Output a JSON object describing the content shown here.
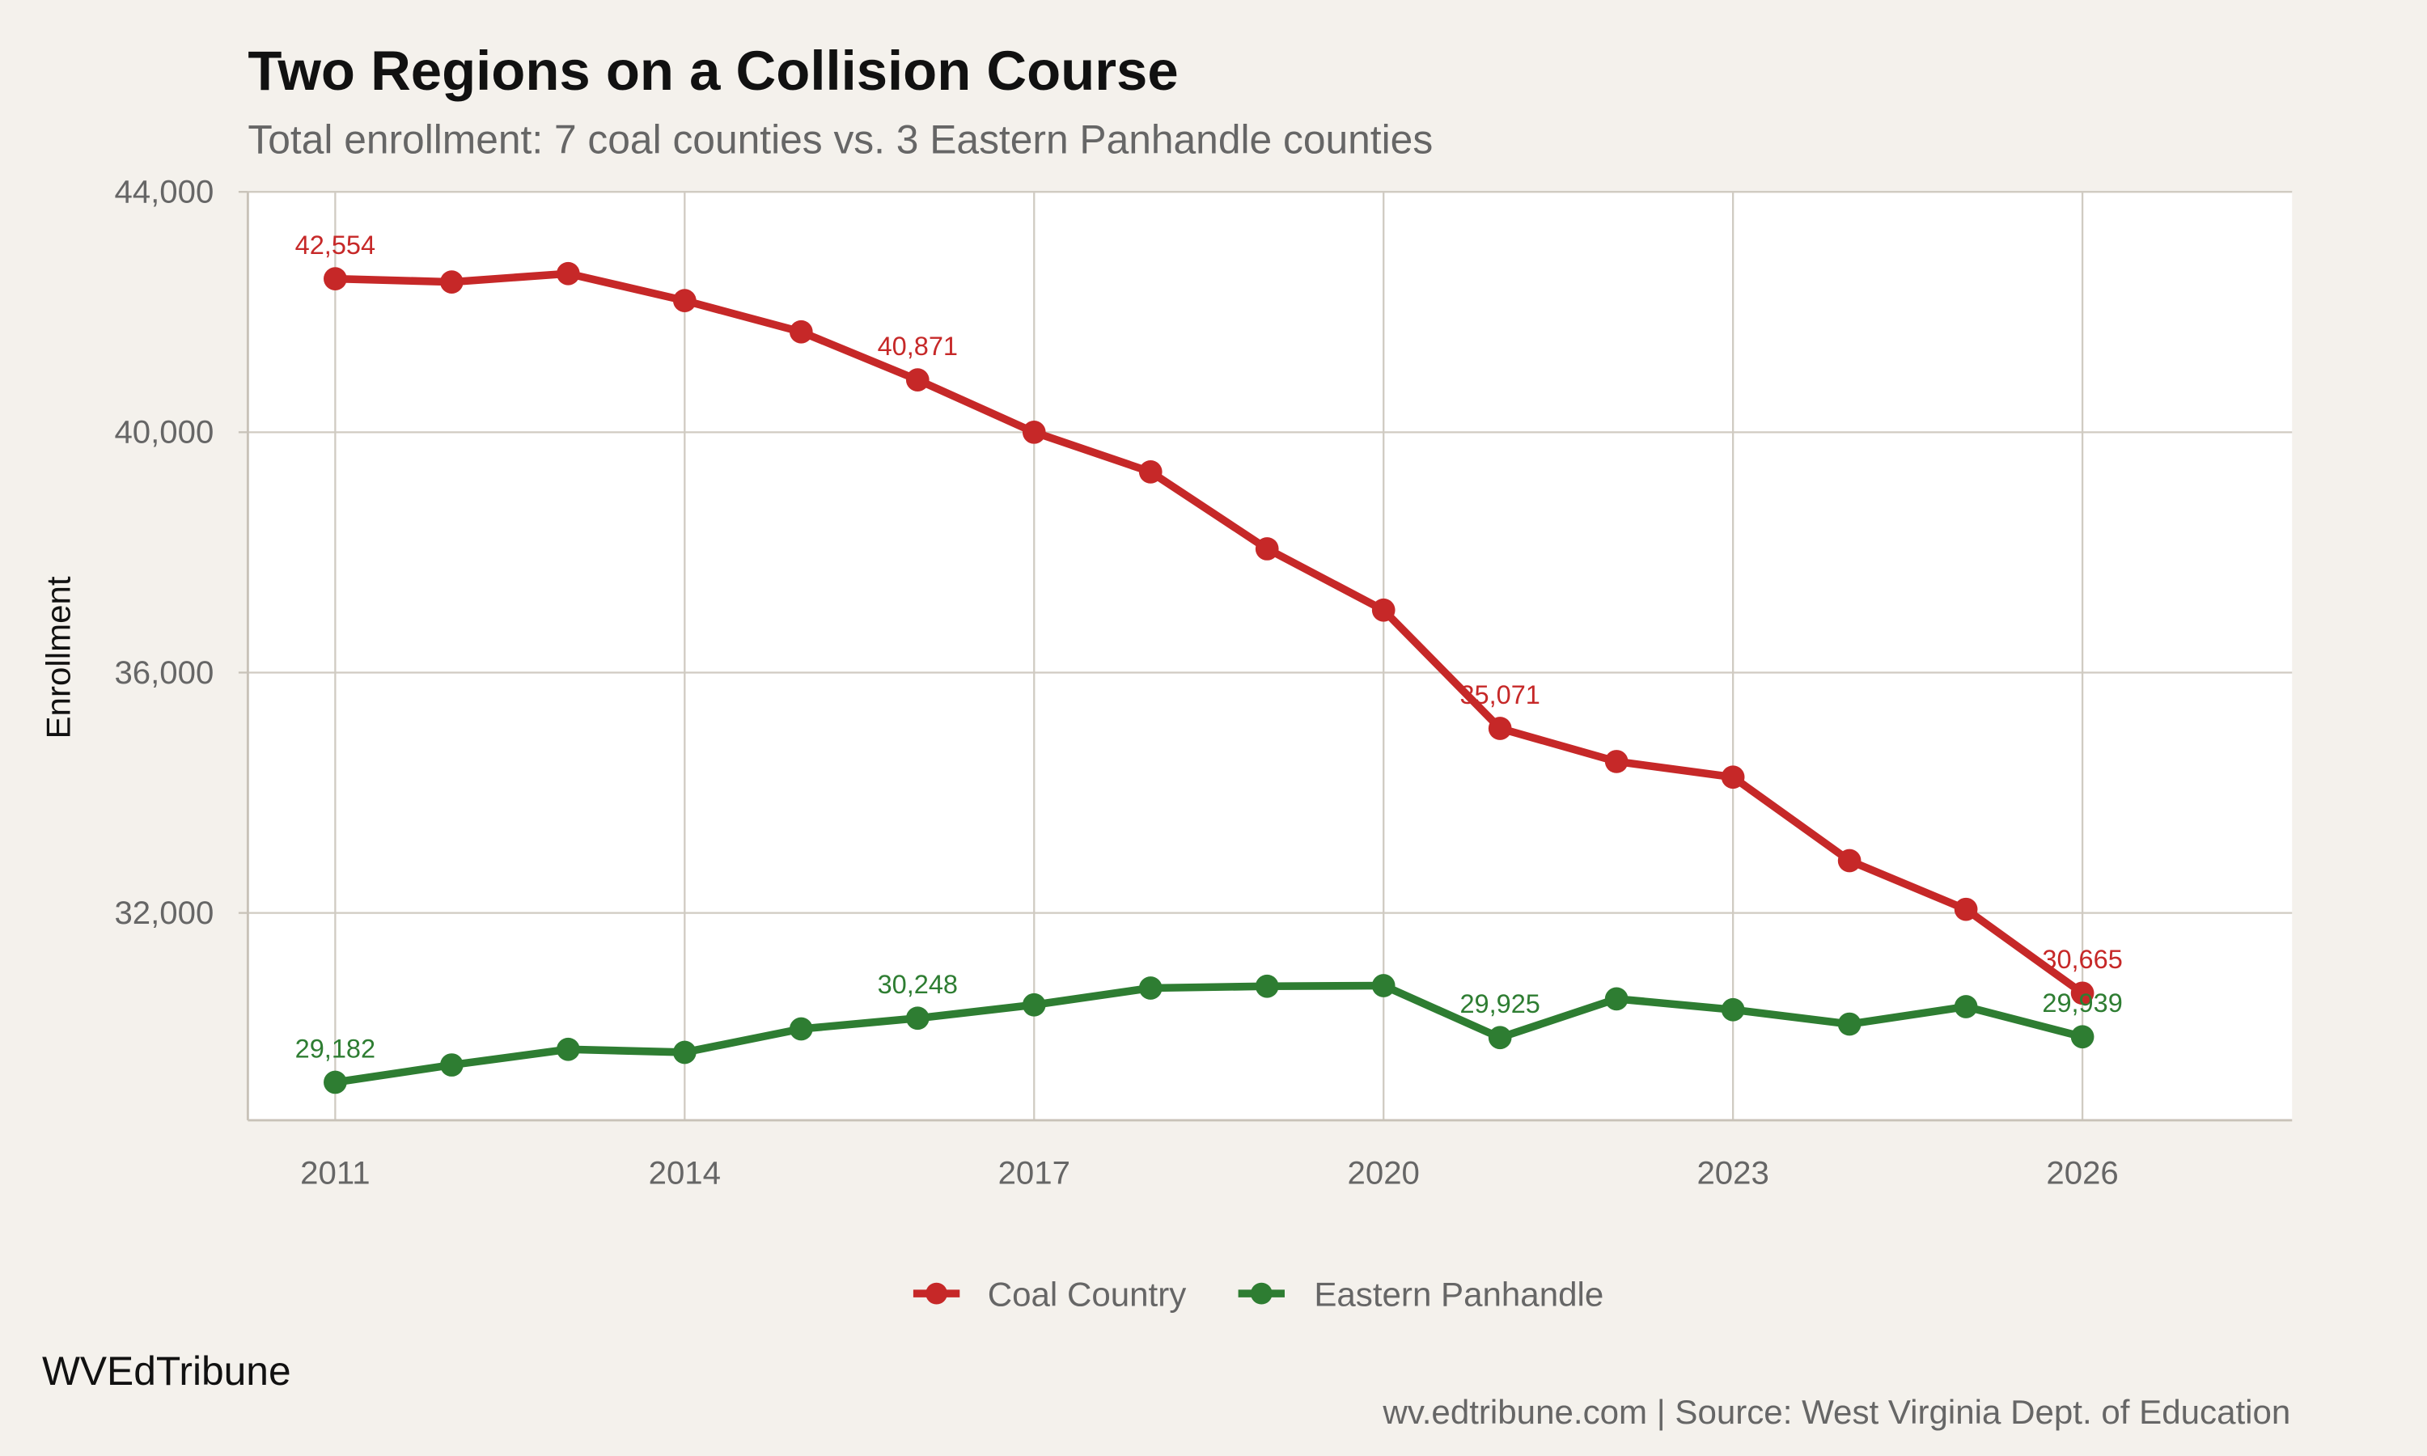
{
  "chart_data": {
    "type": "line",
    "title": "Two Regions on a Collision Course",
    "subtitle": "Total enrollment: 7 coal counties vs. 3 Eastern Panhandle counties",
    "xlabel": "",
    "ylabel": "Enrollment",
    "x": [
      2011,
      2012,
      2013,
      2014,
      2015,
      2016,
      2017,
      2018,
      2019,
      2020,
      2021,
      2022,
      2023,
      2024,
      2025,
      2026
    ],
    "xticks": [
      "2011",
      "2014",
      "2017",
      "2020",
      "2023",
      "2026"
    ],
    "yticks": [
      "32,000",
      "36,000",
      "40,000",
      "44,000"
    ],
    "ylim": [
      28550,
      44000
    ],
    "xlim": [
      2010.25,
      2027.8
    ],
    "grid": true,
    "legend": "bottom",
    "series": [
      {
        "name": "Coal Country",
        "color": "#c62828",
        "values": [
          42554,
          42500,
          42640,
          42190,
          41670,
          40871,
          40000,
          39340,
          38060,
          37040,
          35071,
          34520,
          34260,
          32870,
          32060,
          30665
        ],
        "labels": {
          "2011": "42,554",
          "2016": "40,871",
          "2021": "35,071",
          "2026": "30,665"
        }
      },
      {
        "name": "Eastern Panhandle",
        "color": "#2e7d32",
        "values": [
          29182,
          29470,
          29730,
          29680,
          30070,
          30248,
          30470,
          30750,
          30780,
          30790,
          29925,
          30570,
          30390,
          30150,
          30440,
          29939
        ],
        "labels": {
          "2011": "29,182",
          "2016": "30,248",
          "2021": "29,925",
          "2026": "29,939"
        }
      }
    ],
    "caption_left": "WVEdTribune",
    "caption_right": "wv.edtribune.com | Source: West Virginia Dept. of Education"
  }
}
